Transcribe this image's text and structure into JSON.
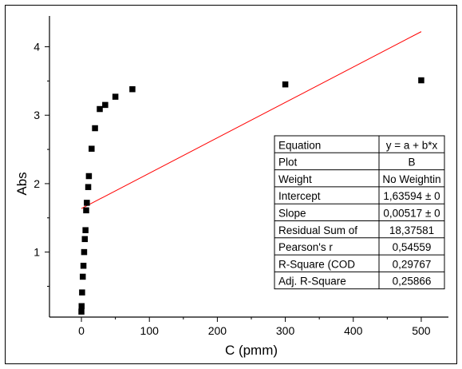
{
  "chart_data": {
    "type": "scatter",
    "title": "",
    "xlabel": "C (pmm)",
    "ylabel": "Abs",
    "xlim": [
      -47,
      540
    ],
    "ylim": [
      0.05,
      4.45
    ],
    "x_ticks": [
      0,
      100,
      200,
      300,
      400,
      500
    ],
    "y_ticks": [
      1,
      2,
      3,
      4
    ],
    "grid": false,
    "series": [
      {
        "marker": "square",
        "color": "#000000",
        "points": [
          [
            0,
            0.13
          ],
          [
            0.3,
            0.21
          ],
          [
            1,
            0.41
          ],
          [
            2,
            0.64
          ],
          [
            3,
            0.8
          ],
          [
            4,
            1.0
          ],
          [
            5,
            1.19
          ],
          [
            6,
            1.32
          ],
          [
            7,
            1.61
          ],
          [
            8,
            1.72
          ],
          [
            10,
            1.95
          ],
          [
            11,
            2.11
          ],
          [
            15,
            2.51
          ],
          [
            20,
            2.81
          ],
          [
            27,
            3.09
          ],
          [
            35,
            3.15
          ],
          [
            50,
            3.27
          ],
          [
            75,
            3.38
          ],
          [
            300,
            3.45
          ],
          [
            500,
            3.51
          ]
        ]
      }
    ],
    "fit": {
      "type": "linear",
      "color": "#ff0000",
      "intercept": 1.63594,
      "slope": 0.00517,
      "x_range": [
        0,
        500
      ]
    },
    "fit_table": {
      "position": "bottom-right",
      "rows": [
        [
          "Equation",
          "y = a + b*x"
        ],
        [
          "Plot",
          "B"
        ],
        [
          "Weight",
          "No Weightin"
        ],
        [
          "Intercept",
          "1,63594 ± 0"
        ],
        [
          "Slope",
          "0,00517 ± 0"
        ],
        [
          "Residual Sum of",
          "18,37581"
        ],
        [
          "Pearson's r",
          "0,54559"
        ],
        [
          "R-Square (COD",
          "0,29767"
        ],
        [
          "Adj. R-Square",
          "0,25866"
        ]
      ]
    }
  }
}
